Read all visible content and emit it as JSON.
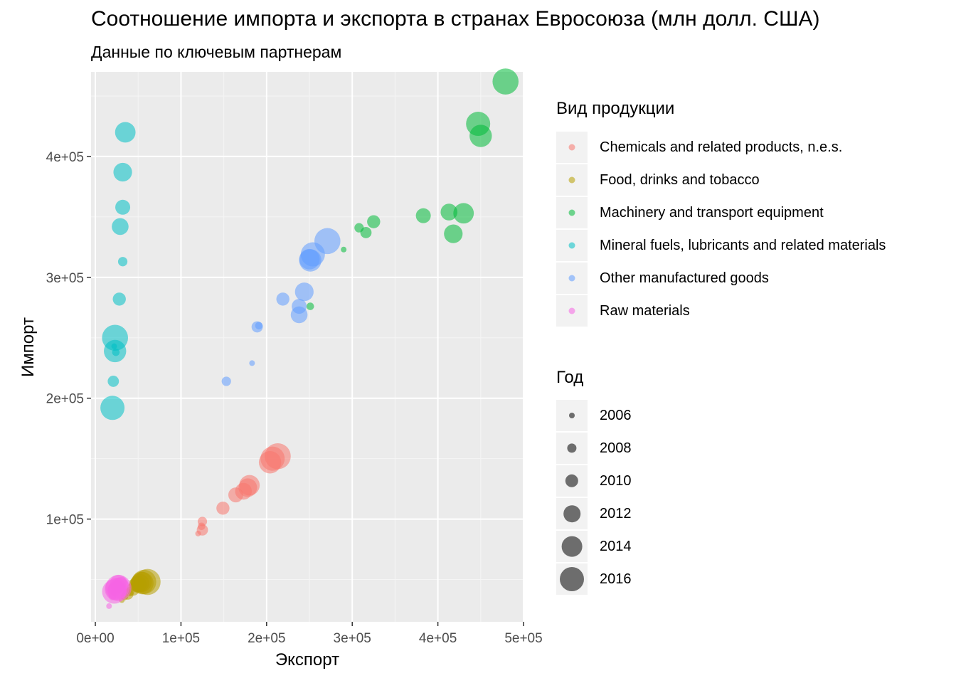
{
  "chart_data": {
    "type": "scatter",
    "title": "Соотношение импорта и экспорта в странах Евросоюза (млн долл. США)",
    "subtitle": "Данные по ключевым партнерам",
    "xlabel": "Экспорт",
    "ylabel": "Импорт",
    "xlim": [
      -5000,
      500000
    ],
    "ylim": [
      15000,
      470000
    ],
    "x_ticks": [
      0,
      100000,
      200000,
      300000,
      400000,
      500000
    ],
    "x_tick_labels": [
      "0e+00",
      "1e+05",
      "2e+05",
      "3e+05",
      "4e+05",
      "5e+05"
    ],
    "y_ticks": [
      100000,
      200000,
      300000,
      400000
    ],
    "y_tick_labels": [
      "1e+05",
      "2e+05",
      "3e+05",
      "4e+05"
    ],
    "grid": true,
    "legend_color_title": "Вид продукции",
    "legend_size_title": "Год",
    "legend_position": "right",
    "point_alpha": 0.55,
    "series": [
      {
        "name": "Chemicals and related products, n.e.s.",
        "color": "#F8766D",
        "points": [
          {
            "x": 120000,
            "y": 88000,
            "year": 2006
          },
          {
            "x": 124000,
            "y": 94000,
            "year": 2007
          },
          {
            "x": 125000,
            "y": 98000,
            "year": 2008
          },
          {
            "x": 125000,
            "y": 91000,
            "year": 2009
          },
          {
            "x": 149000,
            "y": 109000,
            "year": 2010
          },
          {
            "x": 164000,
            "y": 120000,
            "year": 2011
          },
          {
            "x": 173000,
            "y": 123000,
            "year": 2012
          },
          {
            "x": 178000,
            "y": 126000,
            "year": 2013
          },
          {
            "x": 180000,
            "y": 128000,
            "year": 2014
          },
          {
            "x": 204000,
            "y": 147000,
            "year": 2015
          },
          {
            "x": 207000,
            "y": 150000,
            "year": 2016
          },
          {
            "x": 213000,
            "y": 152000,
            "year": 2017
          }
        ]
      },
      {
        "name": "Food, drinks and tobacco",
        "color": "#B79F00",
        "points": [
          {
            "x": 31000,
            "y": 33000,
            "year": 2006
          },
          {
            "x": 34000,
            "y": 36000,
            "year": 2007
          },
          {
            "x": 40000,
            "y": 40000,
            "year": 2008
          },
          {
            "x": 38000,
            "y": 38000,
            "year": 2009
          },
          {
            "x": 44000,
            "y": 42000,
            "year": 2010
          },
          {
            "x": 48000,
            "y": 46000,
            "year": 2011
          },
          {
            "x": 50000,
            "y": 46000,
            "year": 2012
          },
          {
            "x": 52000,
            "y": 47000,
            "year": 2013
          },
          {
            "x": 54000,
            "y": 48000,
            "year": 2014
          },
          {
            "x": 55000,
            "y": 47000,
            "year": 2015
          },
          {
            "x": 57000,
            "y": 48000,
            "year": 2016
          },
          {
            "x": 61000,
            "y": 48000,
            "year": 2017
          }
        ]
      },
      {
        "name": "Machinery and transport equipment",
        "color": "#00BA38",
        "points": [
          {
            "x": 290000,
            "y": 323000,
            "year": 2006
          },
          {
            "x": 251000,
            "y": 276000,
            "year": 2007
          },
          {
            "x": 308000,
            "y": 341000,
            "year": 2008
          },
          {
            "x": 316000,
            "y": 337000,
            "year": 2009
          },
          {
            "x": 325000,
            "y": 346000,
            "year": 2010
          },
          {
            "x": 383000,
            "y": 351000,
            "year": 2011
          },
          {
            "x": 413000,
            "y": 354000,
            "year": 2012
          },
          {
            "x": 418000,
            "y": 336000,
            "year": 2013
          },
          {
            "x": 430000,
            "y": 353000,
            "year": 2014
          },
          {
            "x": 450000,
            "y": 417000,
            "year": 2015
          },
          {
            "x": 447000,
            "y": 427000,
            "year": 2016
          },
          {
            "x": 479000,
            "y": 462000,
            "year": 2017
          }
        ]
      },
      {
        "name": "Mineral fuels, lubricants and related materials",
        "color": "#00BFC4",
        "points": [
          {
            "x": 22000,
            "y": 243000,
            "year": 2006
          },
          {
            "x": 24000,
            "y": 238000,
            "year": 2007
          },
          {
            "x": 32000,
            "y": 313000,
            "year": 2008
          },
          {
            "x": 21000,
            "y": 214000,
            "year": 2009
          },
          {
            "x": 28000,
            "y": 282000,
            "year": 2010
          },
          {
            "x": 32000,
            "y": 358000,
            "year": 2011
          },
          {
            "x": 29000,
            "y": 342000,
            "year": 2012
          },
          {
            "x": 32000,
            "y": 387000,
            "year": 2013
          },
          {
            "x": 35000,
            "y": 420000,
            "year": 2014
          },
          {
            "x": 23000,
            "y": 239000,
            "year": 2015
          },
          {
            "x": 20000,
            "y": 192000,
            "year": 2016
          },
          {
            "x": 23000,
            "y": 250000,
            "year": 2017
          }
        ]
      },
      {
        "name": "Other manufactured goods",
        "color": "#619CFF",
        "points": [
          {
            "x": 183000,
            "y": 229000,
            "year": 2006
          },
          {
            "x": 191000,
            "y": 260000,
            "year": 2007
          },
          {
            "x": 153000,
            "y": 214000,
            "year": 2008
          },
          {
            "x": 189000,
            "y": 259000,
            "year": 2009
          },
          {
            "x": 219000,
            "y": 282000,
            "year": 2010
          },
          {
            "x": 238000,
            "y": 276000,
            "year": 2011
          },
          {
            "x": 238000,
            "y": 269000,
            "year": 2012
          },
          {
            "x": 244000,
            "y": 288000,
            "year": 2013
          },
          {
            "x": 250000,
            "y": 315000,
            "year": 2014
          },
          {
            "x": 251000,
            "y": 314000,
            "year": 2015
          },
          {
            "x": 254000,
            "y": 319000,
            "year": 2016
          },
          {
            "x": 271000,
            "y": 330000,
            "year": 2017
          }
        ]
      },
      {
        "name": "Raw materials",
        "color": "#F564E3",
        "points": [
          {
            "x": 16000,
            "y": 28000,
            "year": 2006
          },
          {
            "x": 20000,
            "y": 36000,
            "year": 2007
          },
          {
            "x": 24000,
            "y": 40000,
            "year": 2008
          },
          {
            "x": 21000,
            "y": 42000,
            "year": 2009
          },
          {
            "x": 26000,
            "y": 44000,
            "year": 2010
          },
          {
            "x": 30000,
            "y": 46000,
            "year": 2011
          },
          {
            "x": 27000,
            "y": 47000,
            "year": 2012
          },
          {
            "x": 25000,
            "y": 41000,
            "year": 2013
          },
          {
            "x": 28000,
            "y": 43000,
            "year": 2014
          },
          {
            "x": 24000,
            "y": 42000,
            "year": 2015
          },
          {
            "x": 22000,
            "y": 40000,
            "year": 2016
          },
          {
            "x": 27000,
            "y": 43000,
            "year": 2017
          }
        ]
      }
    ],
    "size_legend": [
      {
        "label": "2006",
        "year": 2006
      },
      {
        "label": "2008",
        "year": 2008
      },
      {
        "label": "2010",
        "year": 2010
      },
      {
        "label": "2012",
        "year": 2012
      },
      {
        "label": "2014",
        "year": 2014
      },
      {
        "label": "2016",
        "year": 2016
      }
    ]
  }
}
